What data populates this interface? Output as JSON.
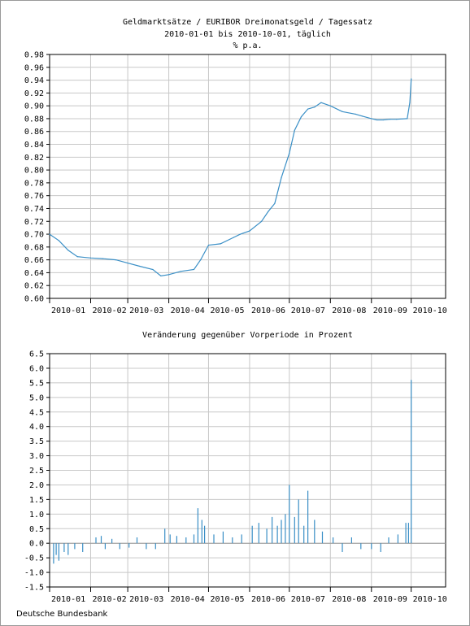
{
  "footer": "Deutsche Bundesbank",
  "chart_data": [
    {
      "type": "line",
      "title": "Geldmarktsätze / EURIBOR Dreimonatsgeld / Tagessatz",
      "subtitle": "2010-01-01 bis 2010-10-01, täglich",
      "unit": "% p.a.",
      "ylim": [
        0.6,
        0.98
      ],
      "yticks": [
        "0.60",
        "0.62",
        "0.64",
        "0.66",
        "0.68",
        "0.70",
        "0.72",
        "0.74",
        "0.76",
        "0.78",
        "0.80",
        "0.82",
        "0.84",
        "0.86",
        "0.88",
        "0.90",
        "0.92",
        "0.94",
        "0.96",
        "0.98"
      ],
      "xticks": [
        "2010-01",
        "2010-02",
        "2010-03",
        "2010-04",
        "2010-05",
        "2010-06",
        "2010-07",
        "2010-08",
        "2010-09",
        "2010-10"
      ],
      "grid": true,
      "color": "#3a8fc6",
      "x": [
        "2010-01-01",
        "2010-01-08",
        "2010-01-15",
        "2010-01-22",
        "2010-02-01",
        "2010-02-10",
        "2010-02-20",
        "2010-03-01",
        "2010-03-10",
        "2010-03-20",
        "2010-03-26",
        "2010-04-01",
        "2010-04-10",
        "2010-04-20",
        "2010-04-25",
        "2010-05-01",
        "2010-05-10",
        "2010-05-20",
        "2010-05-25",
        "2010-06-01",
        "2010-06-10",
        "2010-06-15",
        "2010-06-20",
        "2010-06-25",
        "2010-07-01",
        "2010-07-05",
        "2010-07-10",
        "2010-07-15",
        "2010-07-20",
        "2010-07-25",
        "2010-08-01",
        "2010-08-10",
        "2010-08-20",
        "2010-08-25",
        "2010-09-01",
        "2010-09-05",
        "2010-09-10",
        "2010-09-15",
        "2010-09-20",
        "2010-09-28",
        "2010-09-30",
        "2010-10-01"
      ],
      "values": [
        0.7,
        0.69,
        0.675,
        0.665,
        0.663,
        0.662,
        0.66,
        0.655,
        0.65,
        0.645,
        0.635,
        0.637,
        0.642,
        0.645,
        0.66,
        0.683,
        0.685,
        0.695,
        0.7,
        0.705,
        0.72,
        0.735,
        0.748,
        0.788,
        0.826,
        0.862,
        0.883,
        0.895,
        0.898,
        0.905,
        0.9,
        0.891,
        0.887,
        0.884,
        0.88,
        0.878,
        0.878,
        0.879,
        0.879,
        0.88,
        0.905,
        0.942
      ]
    },
    {
      "type": "bar",
      "title": "Veränderung gegenüber Vorperiode in Prozent",
      "ylim": [
        -1.5,
        6.5
      ],
      "yticks": [
        "-1.5",
        "-1.0",
        "-0.5",
        "0.0",
        "0.5",
        "1.0",
        "1.5",
        "2.0",
        "2.5",
        "3.0",
        "3.5",
        "4.0",
        "4.5",
        "5.0",
        "5.5",
        "6.0",
        "6.5"
      ],
      "xticks": [
        "2010-01",
        "2010-02",
        "2010-03",
        "2010-04",
        "2010-05",
        "2010-06",
        "2010-07",
        "2010-08",
        "2010-09",
        "2010-10"
      ],
      "grid": true,
      "color": "#3a8fc6",
      "x": [
        "2010-01-04",
        "2010-01-06",
        "2010-01-08",
        "2010-01-12",
        "2010-01-15",
        "2010-01-20",
        "2010-01-26",
        "2010-02-05",
        "2010-02-09",
        "2010-02-12",
        "2010-02-17",
        "2010-02-23",
        "2010-03-02",
        "2010-03-08",
        "2010-03-15",
        "2010-03-22",
        "2010-03-29",
        "2010-04-02",
        "2010-04-07",
        "2010-04-14",
        "2010-04-20",
        "2010-04-23",
        "2010-04-26",
        "2010-04-28",
        "2010-05-05",
        "2010-05-12",
        "2010-05-19",
        "2010-05-26",
        "2010-06-03",
        "2010-06-08",
        "2010-06-14",
        "2010-06-18",
        "2010-06-22",
        "2010-06-25",
        "2010-06-28",
        "2010-07-01",
        "2010-07-05",
        "2010-07-08",
        "2010-07-12",
        "2010-07-15",
        "2010-07-20",
        "2010-07-26",
        "2010-08-03",
        "2010-08-10",
        "2010-08-17",
        "2010-08-24",
        "2010-09-01",
        "2010-09-08",
        "2010-09-14",
        "2010-09-21",
        "2010-09-27",
        "2010-09-29",
        "2010-10-01"
      ],
      "values": [
        -0.7,
        -0.4,
        -0.6,
        -0.3,
        -0.4,
        -0.2,
        -0.3,
        0.2,
        0.25,
        -0.2,
        0.15,
        -0.2,
        -0.15,
        0.2,
        -0.2,
        -0.2,
        0.5,
        0.3,
        0.25,
        0.2,
        0.3,
        1.2,
        0.8,
        0.6,
        0.3,
        0.4,
        0.2,
        0.3,
        0.6,
        0.7,
        0.5,
        0.9,
        0.6,
        0.8,
        1.0,
        2.0,
        0.9,
        1.5,
        0.6,
        1.8,
        0.8,
        0.4,
        0.2,
        -0.3,
        0.2,
        -0.2,
        -0.2,
        -0.3,
        0.2,
        0.3,
        0.7,
        0.7,
        5.6
      ]
    }
  ]
}
